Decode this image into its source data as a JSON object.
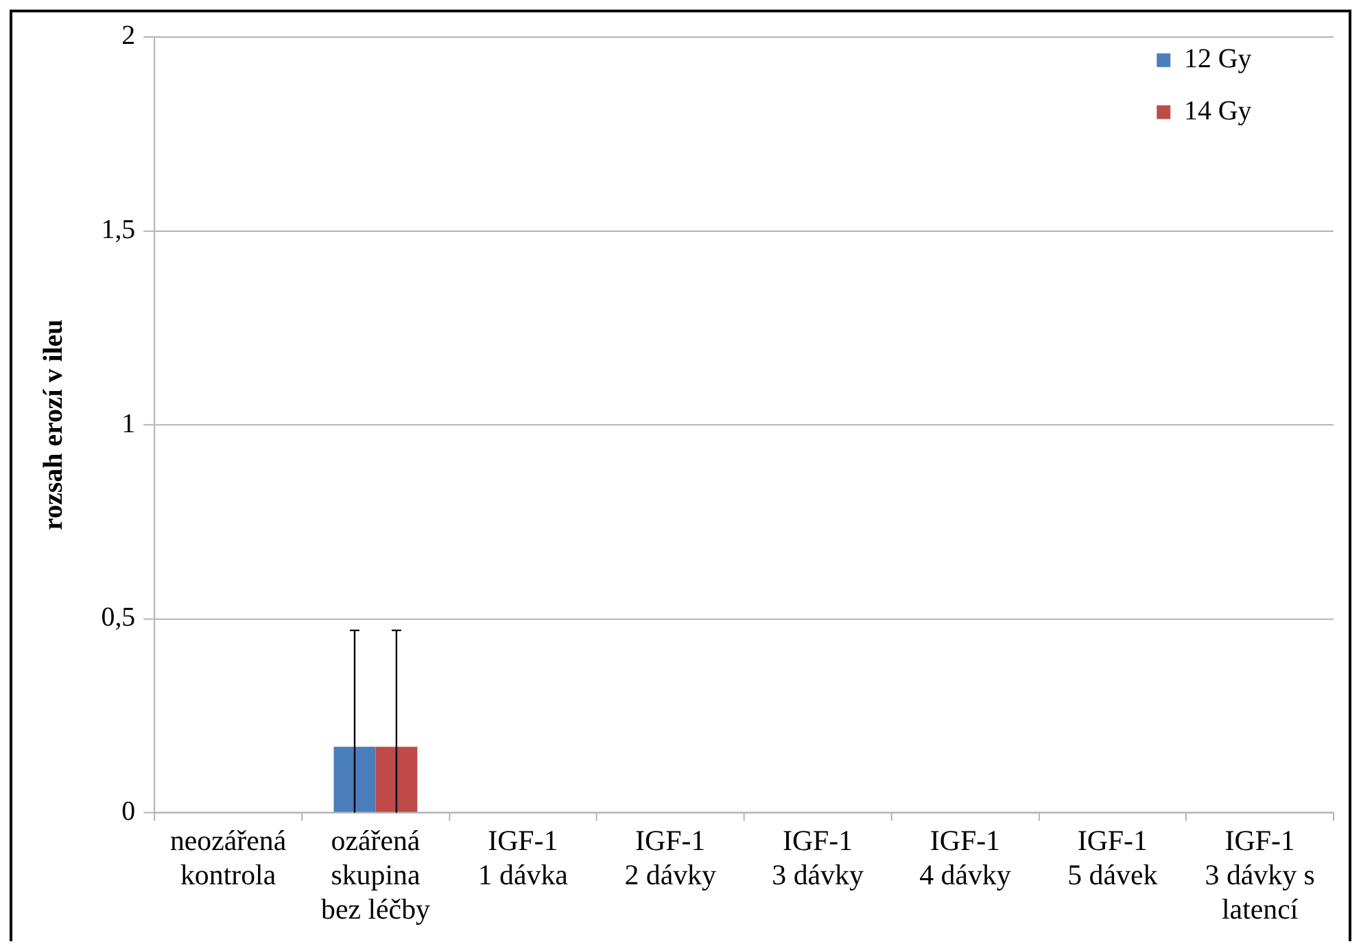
{
  "chart_data": {
    "type": "bar",
    "ylabel": "rozsah erozí v ileu",
    "categories": [
      "neozářená kontrola",
      "ozářená skupina bez léčby",
      "IGF-1 1 dávka",
      "IGF-1 2 dávky",
      "IGF-1 3 dávky",
      "IGF-1 4 dávky",
      "IGF-1 5 dávek",
      "IGF-1 3 dávky s latencí"
    ],
    "series": [
      {
        "name": "12 Gy",
        "color": "#4a7ebb",
        "values": [
          0,
          0.17,
          0,
          0,
          0,
          0,
          0,
          0
        ],
        "errors": [
          null,
          [
            0,
            0.47
          ],
          null,
          null,
          null,
          null,
          null,
          null
        ]
      },
      {
        "name": "14 Gy",
        "color": "#be4b48",
        "values": [
          0,
          0.17,
          0,
          0,
          0,
          0,
          0,
          0
        ],
        "errors": [
          null,
          [
            0,
            0.47
          ],
          null,
          null,
          null,
          null,
          null,
          null
        ]
      }
    ],
    "ylim": [
      0,
      2
    ],
    "yticks": [
      0,
      {
        "value": 0.5,
        "label": "0,5"
      },
      1,
      {
        "value": 1.5,
        "label": "1,5"
      },
      2
    ],
    "grid": "y",
    "legend": "top right"
  }
}
